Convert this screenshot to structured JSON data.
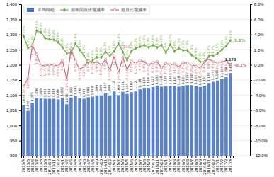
{
  "chart_data": {
    "type": "bar",
    "categories": [
      "2013/4",
      "2013/5",
      "2013/6",
      "2013/7",
      "2013/8",
      "2013/9",
      "2013/10",
      "2013/11",
      "2013/12",
      "2014/1",
      "2014/2",
      "2014/3",
      "2014/4",
      "2014/5",
      "2014/6",
      "2014/7",
      "2014/8",
      "2014/9",
      "2014/10",
      "2014/11",
      "2014/12",
      "2015/1",
      "2015/2",
      "2015/3",
      "2015/4",
      "2015/5",
      "2015/6",
      "2015/7",
      "2015/8",
      "2015/9",
      "2015/10",
      "2015/11",
      "2015/12",
      "2016/1",
      "2016/2",
      "2016/3",
      "2016/4",
      "2016/5",
      "2016/6",
      "2016/7",
      "2016/8",
      "2016/9",
      "2016/10",
      "2016/11",
      "2016/12",
      "2017/1",
      "2017/2",
      "2017/3",
      "2017/4"
    ],
    "series": [
      {
        "name": "平均時給",
        "type": "bar",
        "color": "#4472c4",
        "values": [
          1067,
          1048,
          1075,
          1090,
          1089,
          1088,
          1088,
          1088,
          1086,
          1092,
          1070,
          1092,
          1097,
          1090,
          1088,
          1093,
          1095,
          1099,
          1099,
          1107,
          1099,
          1112,
          1100,
          1111,
          1104,
          1110,
          1112,
          1119,
          1124,
          1124,
          1127,
          1132,
          1128,
          1130,
          1130,
          1131,
          1128,
          1131,
          1133,
          1133,
          1131,
          1127,
          1131,
          1140,
          1144,
          1148,
          1153,
          1159,
          1173
        ],
        "value_labels": [
          "1,067",
          "1,048",
          "1,075",
          "1,090",
          "1,089",
          "1,088",
          "1,088",
          "1,088",
          "1,086",
          "1,092",
          "1,070",
          "1,092",
          "1,097",
          "1,090",
          "1,088",
          "1,093",
          "1,095",
          "1,099",
          "1,099",
          "1,107",
          "1,099",
          "1,112",
          "1,100",
          "1,111",
          "1,104",
          "1,110",
          "1,112",
          "1,119",
          "1,124",
          "1,124",
          "1,127",
          "1,132",
          "1,128",
          "1,130",
          "1,130",
          "1,131",
          "1,128",
          "1,131",
          "1,133",
          "1,133",
          "1,131",
          "1,127",
          "1,131",
          "1,140",
          "1,144",
          "1,148",
          "1,153",
          "1,159",
          "1,173"
        ]
      },
      {
        "name": "前年同月比増減率",
        "type": "line",
        "axis": "y2",
        "color": "#70ad47",
        "marker": "diamond",
        "values": [
          3.8,
          2.2,
          2.5,
          4.5,
          4.3,
          3.5,
          3.4,
          3.3,
          3.0,
          2.3,
          1.5,
          1.6,
          2.8,
          2.0,
          1.2,
          0.3,
          0.6,
          1.0,
          1.0,
          1.7,
          1.2,
          1.8,
          2.8,
          1.7,
          0.6,
          1.8,
          2.2,
          2.4,
          2.6,
          2.3,
          2.6,
          2.3,
          2.6,
          1.6,
          2.7,
          1.8,
          2.2,
          1.9,
          1.9,
          1.3,
          0.9,
          0.4,
          0.4,
          1.2,
          1.2,
          1.5,
          2.0,
          2.5,
          3.2
        ],
        "value_labels": [
          "3.8%",
          "2.2%",
          "2.5%",
          "4.5%",
          "4.3%",
          "3.5%",
          "3.4%",
          "3.3%",
          "3.0%",
          "2.3%",
          "1.5%",
          "1.6%",
          "2.8%",
          "2.0%",
          "1.2%",
          "0.3%",
          "0.6%",
          "1.0%",
          "1.0%",
          "1.7%",
          "1.2%",
          "1.8%",
          "2.8%",
          "1.7%",
          "0.6%",
          "1.8%",
          "2.2%",
          "2.4%",
          "2.6%",
          "2.3%",
          "2.6%",
          "2.3%",
          "2.6%",
          "1.6%",
          "2.7%",
          "1.8%",
          "2.2%",
          "1.9%",
          "1.9%",
          "1.3%",
          "0.9%",
          "0.4%",
          "0.4%",
          "1.2%",
          "1.2%",
          "1.5%",
          "2.0%",
          "2.5%",
          "3.2%"
        ]
      },
      {
        "name": "前月比増減率",
        "type": "line",
        "axis": "y2",
        "color": "#cd6b78",
        "marker": "circle",
        "values": [
          -2.8,
          -1.8,
          2.6,
          1.4,
          -0.1,
          -0.1,
          0.0,
          0.0,
          -0.2,
          0.6,
          -2.0,
          2.1,
          0.5,
          -0.6,
          -0.2,
          0.5,
          0.2,
          0.4,
          0.0,
          0.7,
          -0.7,
          1.2,
          -1.1,
          1.0,
          -0.6,
          0.5,
          0.2,
          0.6,
          0.4,
          0.0,
          0.3,
          0.4,
          -0.4,
          0.2,
          0.0,
          0.1,
          -0.3,
          0.3,
          0.2,
          0.0,
          -0.2,
          -0.4,
          0.4,
          0.8,
          0.4,
          0.3,
          0.4,
          0.5,
          -0.1
        ],
        "value_labels": [
          "-2.8%",
          "-1.8%",
          "2.6%",
          "1.4%",
          "-0.1%",
          "-0.1%",
          "0.0%",
          "0.0%",
          "-0.2%",
          "0.6%",
          "-2.0%",
          "2.1%",
          "0.5%",
          "-0.6%",
          "-0.2%",
          "0.5%",
          "0.2%",
          "0.4%",
          "0.0%",
          "0.7%",
          "-0.7%",
          "1.2%",
          "-1.1%",
          "1.0%",
          "-0.6%",
          "0.5%",
          "0.2%",
          "0.6%",
          "0.4%",
          "0.0%",
          "0.3%",
          "0.4%",
          "-0.4%",
          "0.2%",
          "0.0%",
          "0.1%",
          "-0.3%",
          "0.3%",
          "0.2%",
          "0.0%",
          "-0.2%",
          "-0.4%",
          "0.4%",
          "0.8%",
          "0.4%",
          "0.3%",
          "0.4%",
          "0.5%",
          "-0.1%"
        ]
      }
    ],
    "ylim": [
      900,
      1400
    ],
    "yticks": [
      900,
      950,
      {
        "value": 1000,
        "label": "1,000"
      },
      {
        "value": 1050,
        "label": "1,050"
      },
      {
        "value": 1100,
        "label": "1,100"
      },
      {
        "value": 1150,
        "label": "1,150"
      },
      {
        "value": 1200,
        "label": "1,200"
      },
      {
        "value": 1250,
        "label": "1,250"
      },
      {
        "value": 1300,
        "label": "1,300"
      },
      {
        "value": 1350,
        "label": "1,350"
      },
      {
        "value": 1400,
        "label": "1,400"
      }
    ],
    "y2lim": [
      -12.0,
      8.0
    ],
    "y2ticks": [
      {
        "value": -12,
        "label": "-12.0%"
      },
      {
        "value": -10,
        "label": "-10.0%"
      },
      {
        "value": -8,
        "label": "-8.0%"
      },
      {
        "value": -6,
        "label": "-6.0%"
      },
      {
        "value": -4,
        "label": "-4.0%"
      },
      {
        "value": -2,
        "label": "-2.0%"
      },
      {
        "value": 0,
        "label": "0.0%"
      },
      {
        "value": 2,
        "label": "2.0%"
      },
      {
        "value": 4,
        "label": "4.0%"
      },
      {
        "value": 6,
        "label": "6.0%"
      },
      {
        "value": 8,
        "label": "8.0%"
      }
    ],
    "annotations": [
      {
        "text": "1,101",
        "x": "2015/2",
        "y": 2.2,
        "axis": "y2",
        "color": "#cd6b78"
      },
      {
        "text": "1,173",
        "x": "2017/4",
        "y": 1173,
        "color": "#333333"
      },
      {
        "text": "3.2%",
        "x": "2017/4",
        "y": 3.2,
        "axis": "y2",
        "color": "#70ad47"
      },
      {
        "text": "-0.1%",
        "x": "2017/4",
        "y": -0.1,
        "axis": "y2",
        "color": "#cd6b78"
      }
    ],
    "data_labels": true,
    "grid": true,
    "legend": "upper left"
  }
}
